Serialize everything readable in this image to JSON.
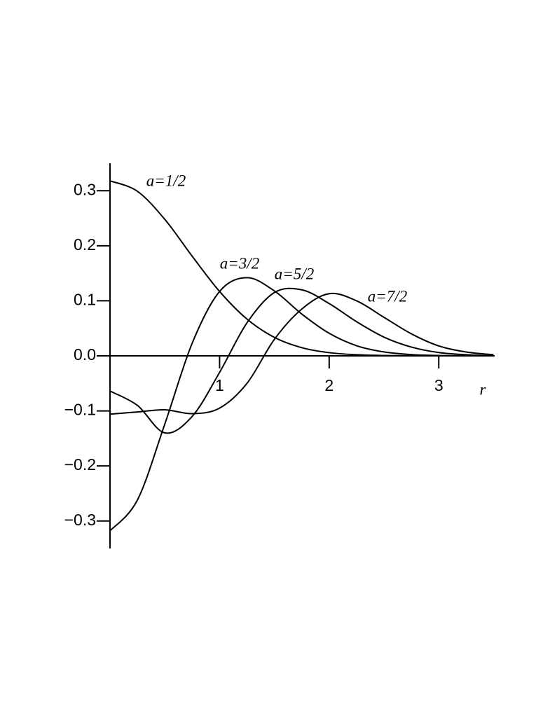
{
  "chart_data": {
    "type": "line",
    "x_label": "r",
    "x": [
      0,
      0.25,
      0.5,
      0.75,
      1,
      1.25,
      1.5,
      1.75,
      2,
      2.25,
      2.5,
      2.75,
      3,
      3.25,
      3.5
    ],
    "series": [
      {
        "name": "a=1/2",
        "color": "#000000",
        "values": [
          0.318,
          0.299,
          0.248,
          0.181,
          0.117,
          0.0668,
          0.0336,
          0.0149,
          0.0058,
          0.002,
          0.0006,
          0.0002,
          0,
          0,
          0
        ]
      },
      {
        "name": "a=3/2",
        "color": "#000000",
        "values": [
          -0.318,
          -0.262,
          -0.124,
          0.023,
          0.117,
          0.142,
          0.118,
          0.076,
          0.041,
          0.0184,
          0.0071,
          0.0023,
          0.0007,
          0.0002,
          0
        ]
      },
      {
        "name": "a=5/2",
        "color": "#000000",
        "values": [
          -0.064,
          -0.09,
          -0.14,
          -0.11,
          -0.03,
          0.06,
          0.115,
          0.12,
          0.095,
          0.062,
          0.034,
          0.016,
          0.006,
          0.002,
          0
        ]
      },
      {
        "name": "a=7/2",
        "color": "#000000",
        "values": [
          -0.106,
          -0.102,
          -0.098,
          -0.105,
          -0.095,
          -0.05,
          0.03,
          0.085,
          0.113,
          0.1,
          0.07,
          0.04,
          0.018,
          0.007,
          0.002
        ]
      }
    ],
    "xlim": [
      0,
      3.51
    ],
    "ylim": [
      -0.35,
      0.35
    ],
    "xticks": [
      1,
      2,
      3
    ],
    "yticks": [
      {
        "value": -0.3,
        "label": "−0.3"
      },
      {
        "value": -0.2,
        "label": "−0.2"
      },
      {
        "value": -0.1,
        "label": "−0.1"
      },
      {
        "value": 0,
        "label": "0.0"
      },
      0.1,
      0.2,
      0.3
    ],
    "grid": false
  }
}
